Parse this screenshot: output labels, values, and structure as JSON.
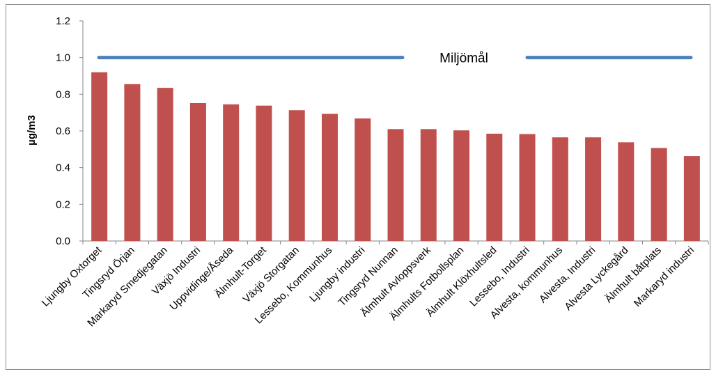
{
  "chart_data": {
    "type": "bar",
    "title": "",
    "xlabel": "",
    "ylabel": "µg/m3",
    "ylim": [
      0,
      1.2
    ],
    "yticks": [
      "0.0",
      "0.2",
      "0.4",
      "0.6",
      "0.8",
      "1.0",
      "1.2"
    ],
    "grid": false,
    "categories": [
      "Ljungby Oxtorget",
      "Tingsryd Örjan",
      "Markaryd Smedjegatan",
      "Växjö Industri",
      "Uppvidinge/Åseda",
      "Älmhult-Torget",
      "Växjö Storgatan",
      "Lessebo, Kommunhus",
      "Ljungby industri",
      "Tingsryd Nunnan",
      "Älmhult Avloppsverk",
      "Älmhults Fotbollsplan",
      "Älmhult Klöxhultsled",
      "Lessebo, Industri",
      "Alvesta, kommunhus",
      "Alvesta, Industri",
      "Alvesta Lyckegård",
      "Älmhult båtplats",
      "Markaryd industri"
    ],
    "values": [
      0.92,
      0.855,
      0.835,
      0.752,
      0.745,
      0.738,
      0.713,
      0.693,
      0.668,
      0.61,
      0.61,
      0.603,
      0.585,
      0.583,
      0.565,
      0.565,
      0.538,
      0.507,
      0.463
    ],
    "bar_color": "#c0504d",
    "reference_line": {
      "label": "Miljömål",
      "value": 1.0,
      "color": "#4f81bd"
    }
  }
}
